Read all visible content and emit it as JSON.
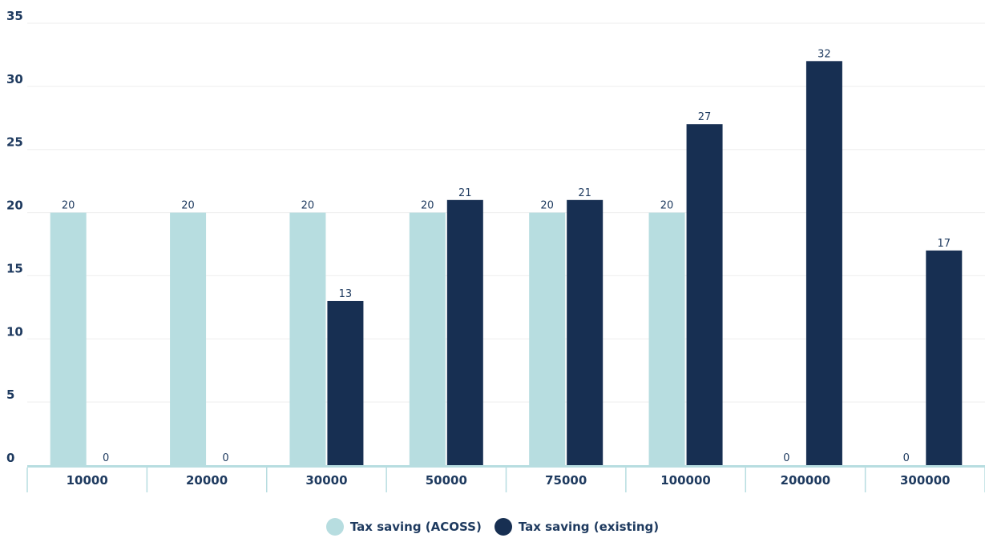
{
  "chart_data": {
    "type": "bar",
    "categories": [
      "10000",
      "20000",
      "30000",
      "50000",
      "75000",
      "100000",
      "200000",
      "300000"
    ],
    "series": [
      {
        "name": "Tax saving (ACOSS)",
        "color": "#b7dde0",
        "values": [
          20,
          20,
          20,
          20,
          20,
          20,
          0,
          0
        ]
      },
      {
        "name": "Tax saving (existing)",
        "color": "#172f52",
        "values": [
          0,
          0,
          13,
          21,
          21,
          27,
          32,
          17
        ]
      }
    ],
    "yticks": [
      "0",
      "5",
      "10",
      "15",
      "20",
      "25",
      "30",
      "35"
    ],
    "ylim": [
      0,
      35
    ],
    "grid": true,
    "legend": "bottom-center",
    "title": "",
    "xlabel": "",
    "ylabel": ""
  }
}
